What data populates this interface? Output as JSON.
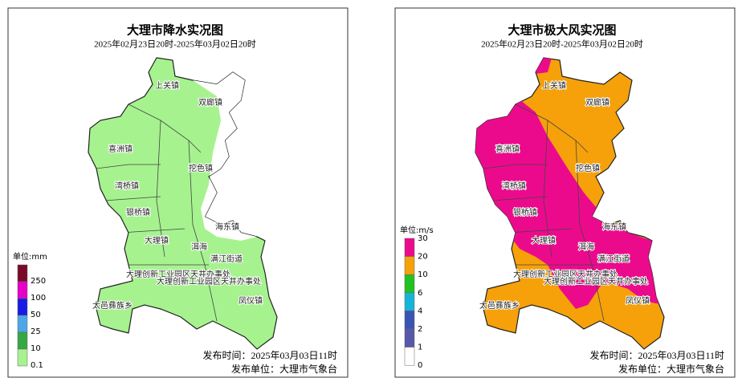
{
  "panels": [
    {
      "title": "大理市降水实况图",
      "subtitle": "2025年02月23日20时-2025年03月02日20时",
      "unit": "单位:mm",
      "legend": [
        "250",
        "100",
        "50",
        "25",
        "10",
        "0.1"
      ],
      "footer": [
        "发布时间：2025年03月03日11时",
        "发布单位：大理市气象台"
      ]
    },
    {
      "title": "大理市极大风实况图",
      "subtitle": "2025年02月23日20时-2025年03月02日20时",
      "unit": "单位:m/s",
      "legend": [
        "30",
        "20",
        "10",
        "6",
        "4",
        "2",
        "1",
        "0"
      ],
      "footer": [
        "发布时间：2025年03月03日11时",
        "发布单位：大理市气象台"
      ]
    }
  ],
  "towns": [
    "上关镇",
    "双廊镇",
    "喜洲镇",
    "挖色镇",
    "湾桥镇",
    "银桥镇",
    "海东镇",
    "大理镇",
    "洱海",
    "满江街道",
    "大理创新工业园区天井办事处",
    "大理创新工业园区天井办事处",
    "凤仪镇",
    "太邑彝族乡"
  ]
}
